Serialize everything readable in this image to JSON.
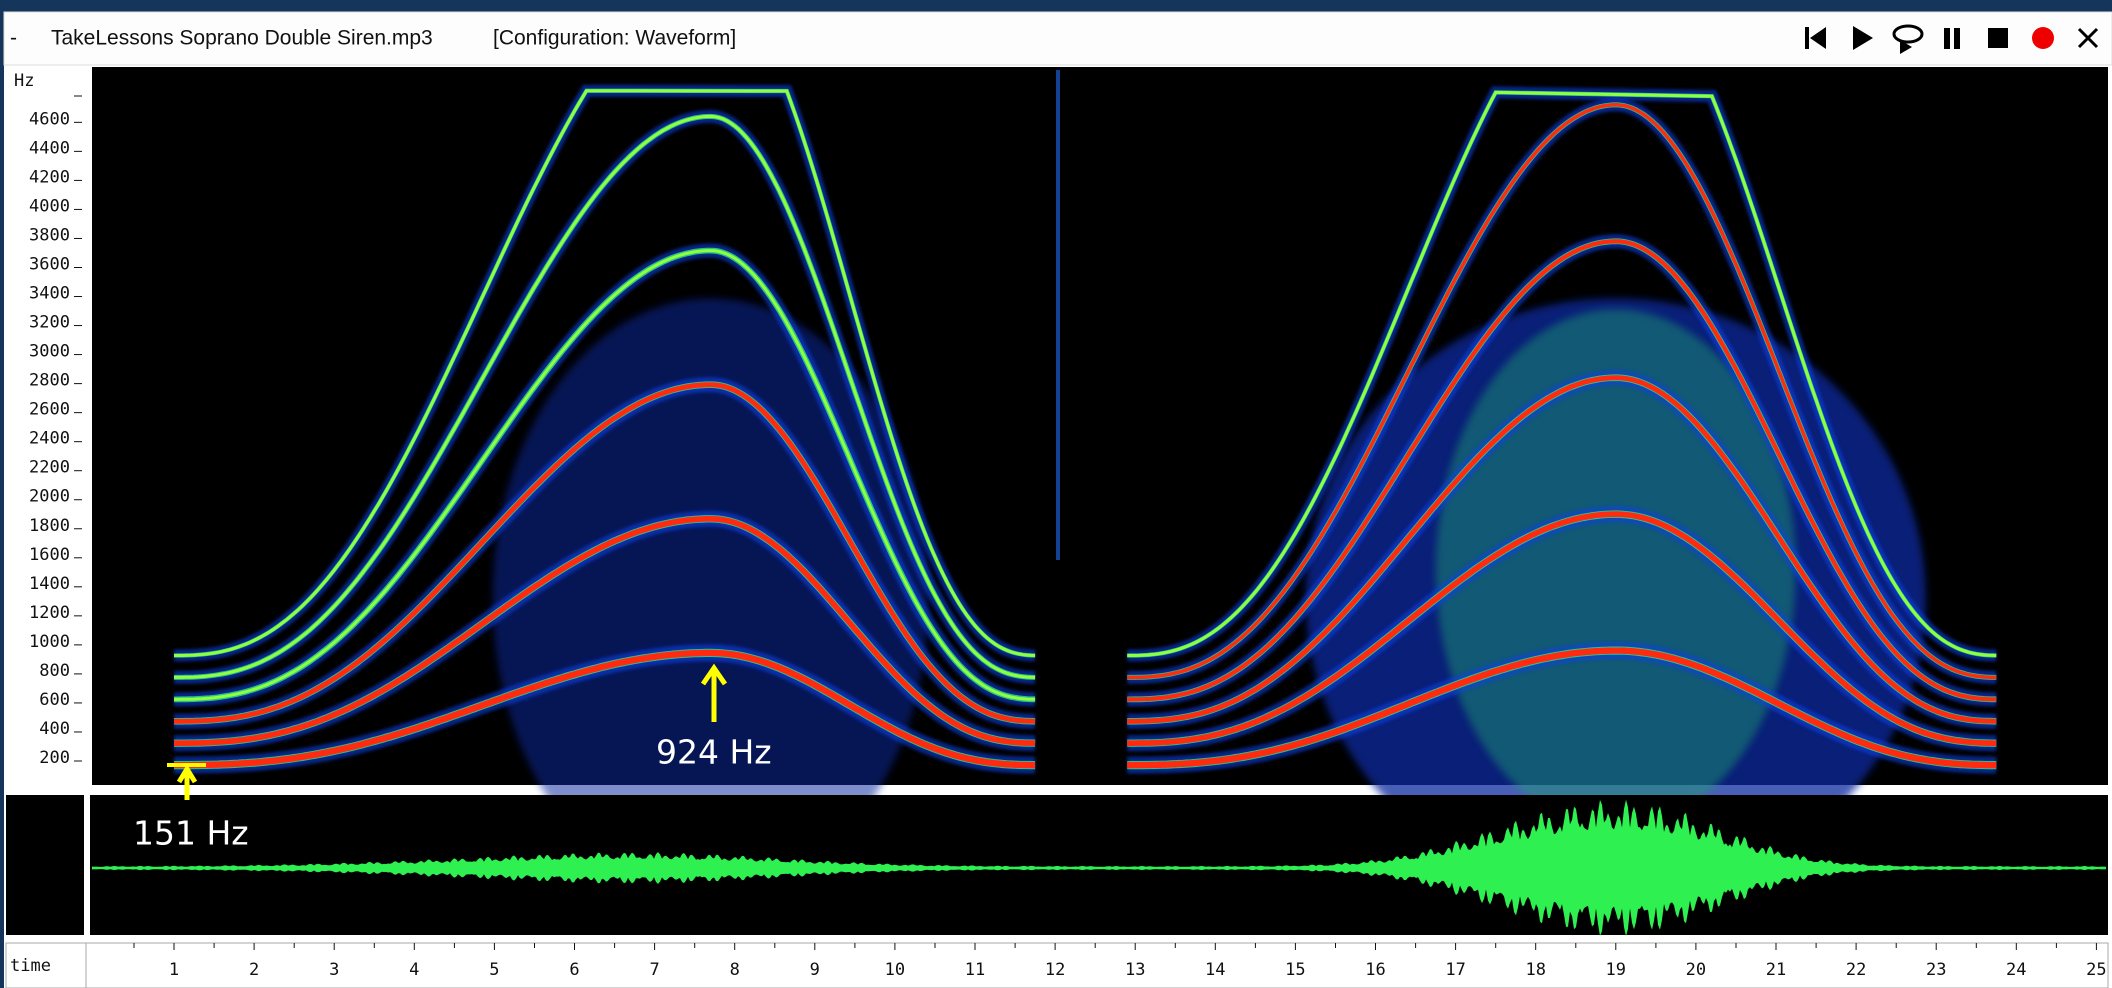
{
  "window": {
    "dash": "-",
    "file_name": "TakeLessons Soprano Double Siren.mp3",
    "configuration": "[Configuration: Waveform]"
  },
  "spectrogram": {
    "unit_label": "Hz",
    "ticks": [
      200,
      400,
      600,
      800,
      1000,
      1200,
      1400,
      1600,
      1800,
      2000,
      2200,
      2400,
      2600,
      2800,
      3000,
      3200,
      3400,
      3600,
      3800,
      4000,
      4200,
      4400,
      4600
    ]
  },
  "annotations": {
    "peak": "924 Hz",
    "start": "151 Hz"
  },
  "time_axis": {
    "label": "time",
    "ticks": [
      1,
      2,
      3,
      4,
      5,
      6,
      7,
      8,
      9,
      10,
      11,
      12,
      13,
      14,
      15,
      16,
      17,
      18,
      19,
      20,
      21,
      22,
      23,
      24,
      25
    ]
  }
}
